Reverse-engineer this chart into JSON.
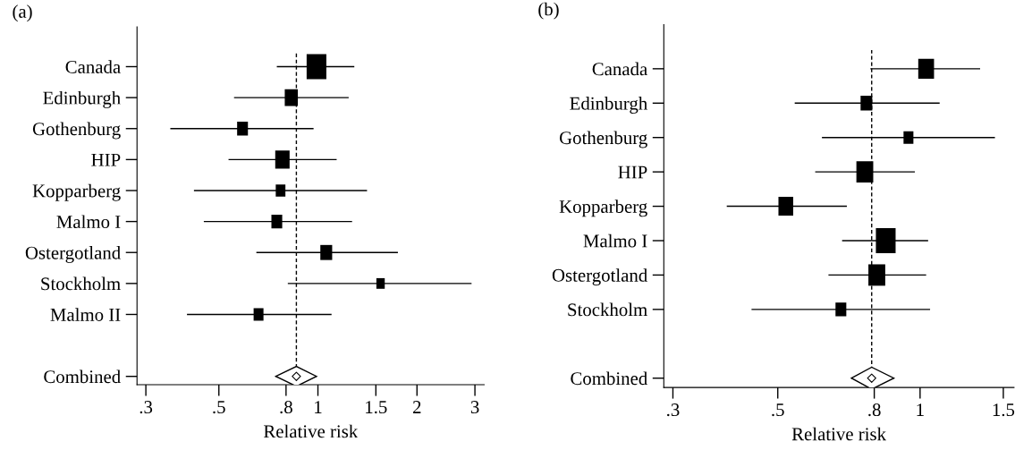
{
  "chart_data": [
    {
      "type": "bubble",
      "title": "(a)",
      "xlabel": "Relative risk",
      "orientation": "horizontal",
      "log": "x",
      "categories": [
        "Canada",
        "Edinburgh",
        "Gothenburg",
        "HIP",
        "Kopparberg",
        "Malmo I",
        "Ostergotland",
        "Stockholm",
        "Malmo II",
        null,
        "Combined"
      ],
      "xlim": [
        0.282,
        3.2
      ],
      "xticks": [
        {
          "value": 0.3,
          "label": ".3"
        },
        {
          "value": 0.5,
          "label": ".5"
        },
        {
          "value": 0.8,
          "label": ".8"
        },
        1,
        1.5,
        2,
        3
      ],
      "series": [
        {
          "marker": "square",
          "color": "#000000",
          "values": [
            0.99,
            0.83,
            0.59,
            0.78,
            0.77,
            0.75,
            1.06,
            1.55,
            0.66,
            null,
            null
          ],
          "sizes": [
            1,
            0.44,
            0.3,
            0.53,
            0.24,
            0.3,
            0.36,
            0.18,
            0.25,
            null,
            null
          ],
          "errors": [
            [
              0.75,
              1.29
            ],
            [
              0.556,
              1.24
            ],
            [
              0.356,
              0.97
            ],
            [
              0.535,
              1.14
            ],
            [
              0.42,
              1.41
            ],
            [
              0.45,
              1.27
            ],
            [
              0.65,
              1.75
            ],
            [
              0.81,
              2.93
            ],
            [
              0.4,
              1.1
            ],
            null,
            null
          ]
        },
        {
          "type": "scatter",
          "marker": "diamond",
          "color": "#ffffff",
          "values": [
            null,
            null,
            null,
            null,
            null,
            null,
            null,
            null,
            null,
            null,
            0.86
          ],
          "errors": [
            null,
            null,
            null,
            null,
            null,
            null,
            null,
            null,
            null,
            null,
            [
              0.745,
              0.99
            ]
          ]
        }
      ],
      "ref_lines": [
        {
          "axis": "x",
          "value": 0.86,
          "line_style": "dashed",
          "color": "#000000"
        }
      ],
      "grid": false,
      "legend": false
    },
    {
      "type": "bubble",
      "title": "(b)",
      "xlabel": "Relative risk",
      "orientation": "horizontal",
      "log": "x",
      "categories": [
        "Canada",
        "Edinburgh",
        "Gothenburg",
        "HIP",
        "Kopparberg",
        "Malmo I",
        "Ostergotland",
        "Stockholm",
        null,
        "Combined"
      ],
      "xlim": [
        0.287,
        1.58
      ],
      "xticks": [
        {
          "value": 0.3,
          "label": ".3"
        },
        {
          "value": 0.5,
          "label": ".5"
        },
        {
          "value": 0.8,
          "label": ".8"
        },
        1,
        1.5
      ],
      "series": [
        {
          "marker": "square",
          "color": "#000000",
          "values": [
            1.03,
            0.77,
            0.945,
            0.764,
            0.52,
            0.846,
            0.81,
            0.68,
            null,
            null
          ],
          "sizes": [
            0.64,
            0.35,
            0.25,
            0.73,
            0.56,
            1,
            0.73,
            0.3,
            null,
            null
          ],
          "errors": [
            [
              0.785,
              1.34
            ],
            [
              0.543,
              1.1
            ],
            [
              0.62,
              1.44
            ],
            [
              0.6,
              0.975
            ],
            [
              0.39,
              0.7
            ],
            [
              0.684,
              1.04
            ],
            [
              0.64,
              1.03
            ],
            [
              0.44,
              1.05
            ],
            null,
            null
          ]
        },
        {
          "type": "scatter",
          "marker": "diamond",
          "color": "#ffffff",
          "values": [
            null,
            null,
            null,
            null,
            null,
            null,
            null,
            null,
            null,
            0.79
          ],
          "errors": [
            null,
            null,
            null,
            null,
            null,
            null,
            null,
            null,
            null,
            [
              0.716,
              0.88
            ]
          ]
        }
      ],
      "ref_lines": [
        {
          "axis": "x",
          "value": 0.79,
          "line_style": "dashed",
          "color": "#000000"
        }
      ],
      "grid": false,
      "legend": false
    }
  ]
}
